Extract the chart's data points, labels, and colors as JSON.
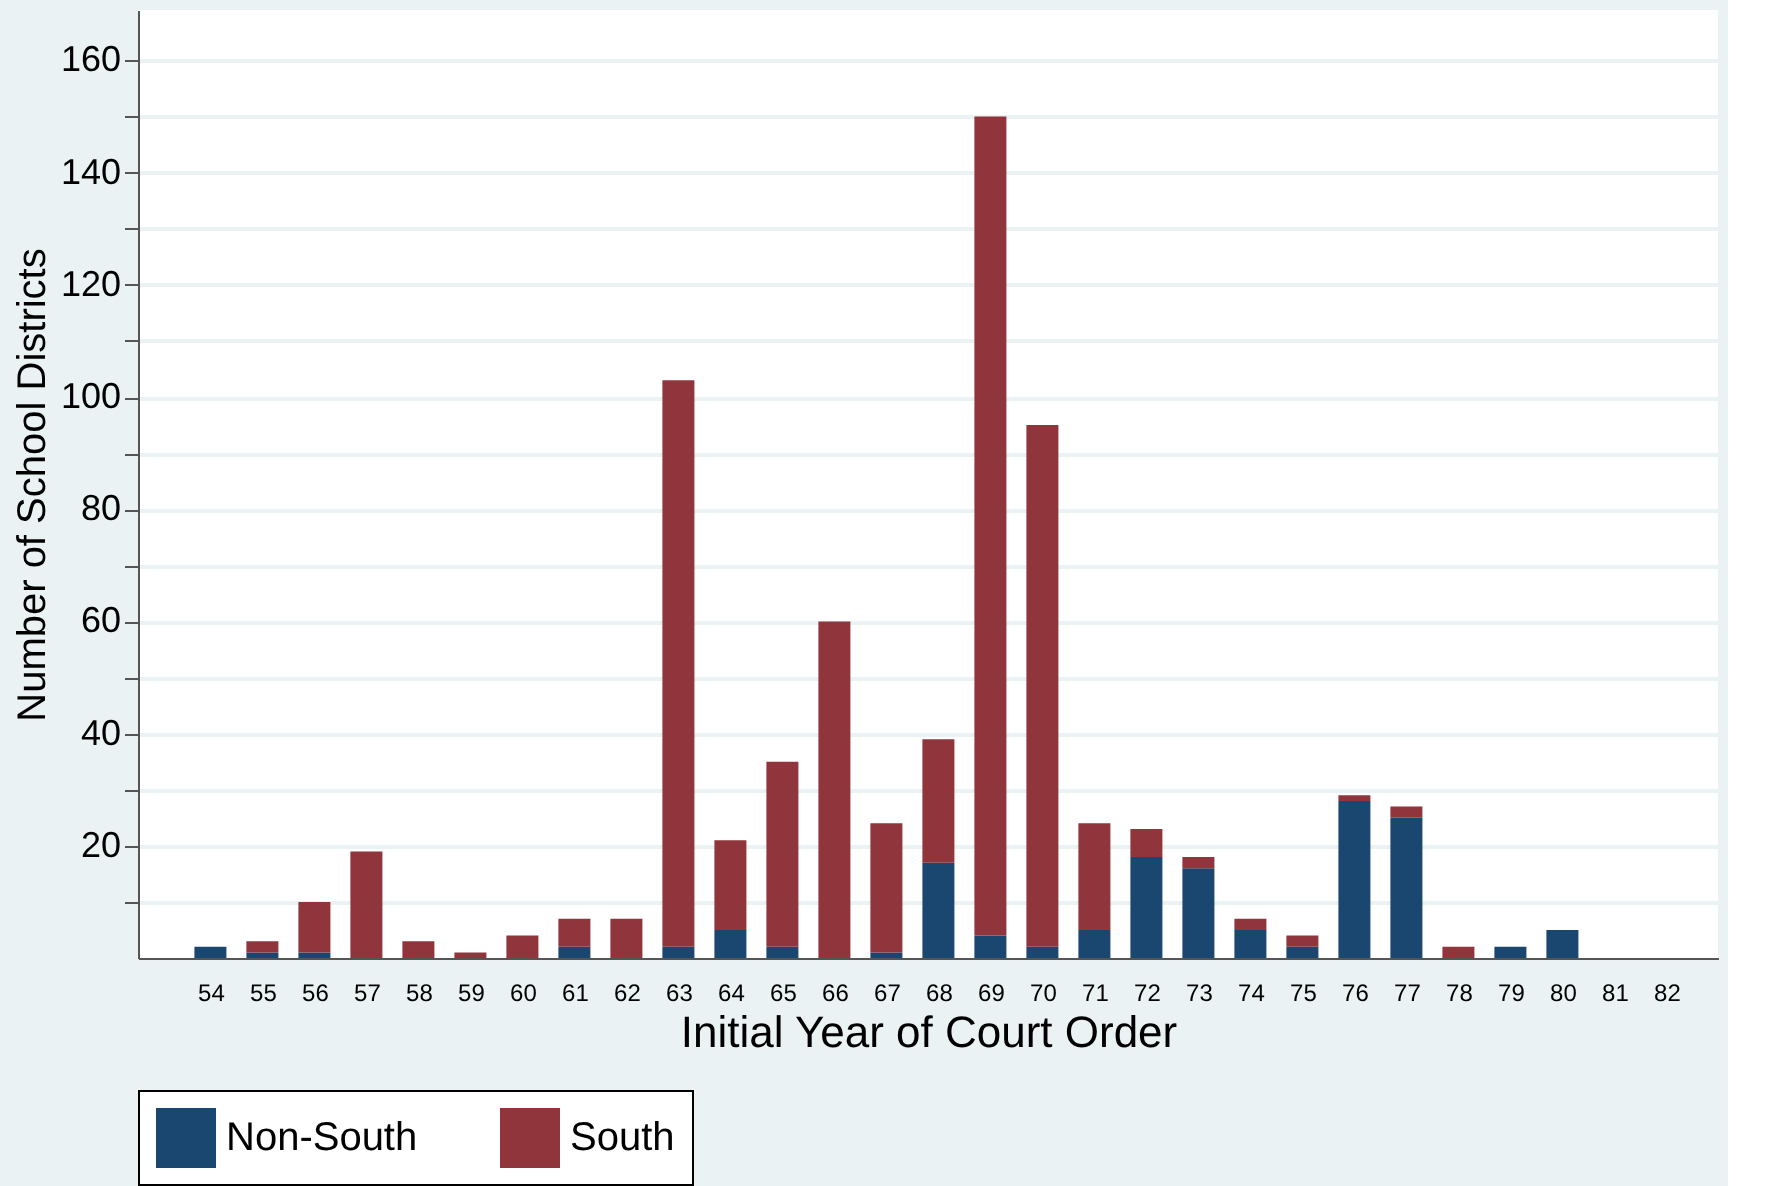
{
  "chart_data": {
    "type": "bar",
    "stacked": true,
    "xlabel": "Initial Year of Court Order",
    "ylabel": "Number of School Districts",
    "categories": [
      "54",
      "55",
      "56",
      "57",
      "58",
      "59",
      "60",
      "61",
      "62",
      "63",
      "64",
      "65",
      "66",
      "67",
      "68",
      "69",
      "70",
      "71",
      "72",
      "73",
      "74",
      "75",
      "76",
      "77",
      "78",
      "79",
      "80",
      "81",
      "82"
    ],
    "series": [
      {
        "name": "Non-South",
        "color": "#1a476f",
        "values": [
          2,
          1,
          1,
          0,
          0,
          0,
          0,
          2,
          0,
          2,
          5,
          2,
          0,
          1,
          17,
          4,
          2,
          5,
          18,
          16,
          5,
          2,
          28,
          25,
          0,
          2,
          5,
          0,
          0
        ]
      },
      {
        "name": "South",
        "color": "#90353b",
        "values": [
          0,
          2,
          9,
          19,
          3,
          1,
          4,
          5,
          7,
          101,
          16,
          33,
          60,
          23,
          22,
          146,
          93,
          19,
          5,
          2,
          2,
          2,
          1,
          2,
          2,
          0,
          0,
          0,
          0
        ]
      }
    ],
    "ylim": [
      0,
      169
    ],
    "yticks": [
      {
        "value": 10,
        "label": null
      },
      20,
      {
        "value": 30,
        "label": null
      },
      40,
      {
        "value": 50,
        "label": null
      },
      60,
      {
        "value": 70,
        "label": null
      },
      80,
      {
        "value": 90,
        "label": null
      },
      100,
      {
        "value": 110,
        "label": null
      },
      120,
      {
        "value": 130,
        "label": null
      },
      140,
      {
        "value": 150,
        "label": null
      },
      160
    ],
    "grid": "y",
    "legend": "bottom"
  }
}
